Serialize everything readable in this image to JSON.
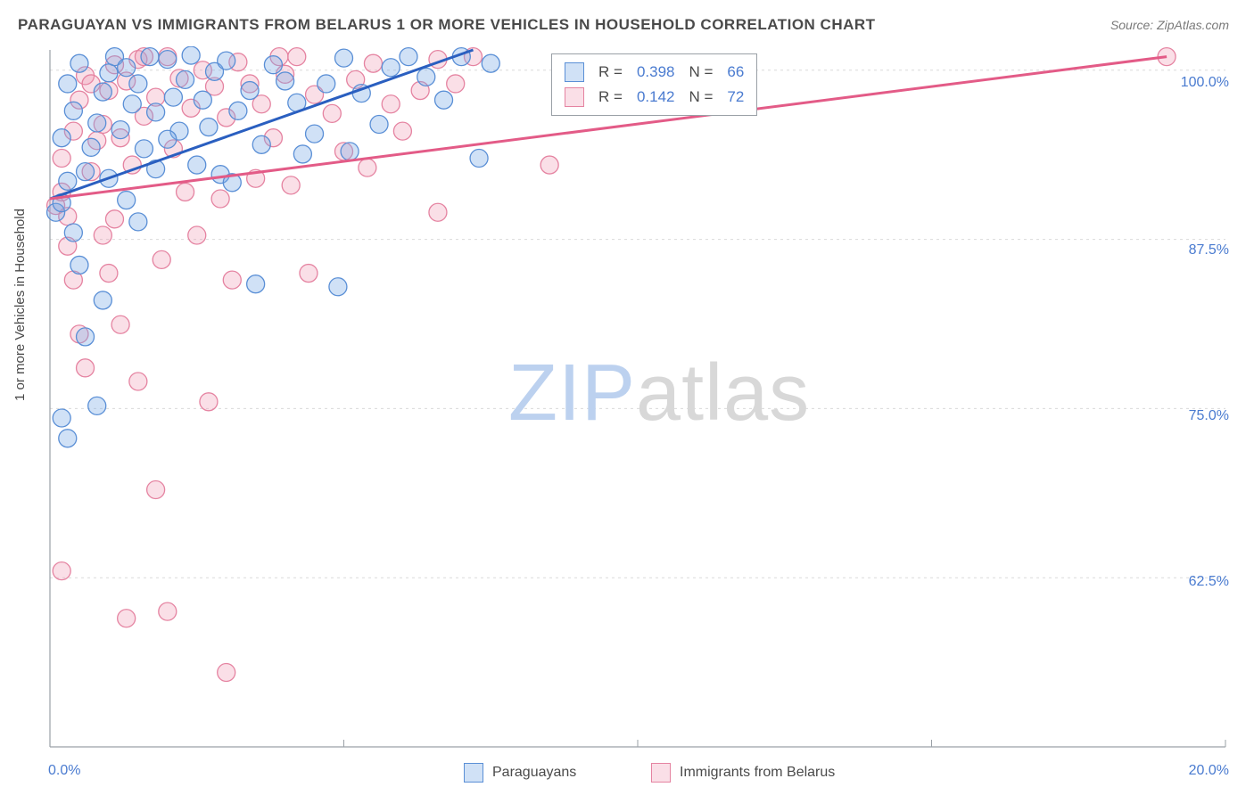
{
  "title": "PARAGUAYAN VS IMMIGRANTS FROM BELARUS 1 OR MORE VEHICLES IN HOUSEHOLD CORRELATION CHART",
  "source": "Source: ZipAtlas.com",
  "ylabel": "1 or more Vehicles in Household",
  "watermark": {
    "zip": "ZIP",
    "atlas": "atlas"
  },
  "chart": {
    "type": "scatter",
    "xlim": [
      0,
      20
    ],
    "ylim": [
      50,
      101.5
    ],
    "background_color": "#ffffff",
    "grid_color": "#d9d9d9",
    "grid_dash": "3,4",
    "axis_color": "#9aa0a6",
    "yticks": [
      62.5,
      75.0,
      87.5,
      100.0
    ],
    "ytick_labels": [
      "62.5%",
      "75.0%",
      "87.5%",
      "100.0%"
    ],
    "xticks": [
      0,
      10,
      20
    ],
    "xtick_labels": [
      "0.0%",
      "",
      "20.0%"
    ],
    "xtick_minor": [
      5,
      15
    ],
    "label_color": "#4a7bd0",
    "label_fontsize": 16
  },
  "series": [
    {
      "name": "Paraguayans",
      "color_fill": "rgba(120,170,230,0.35)",
      "color_stroke": "#5a8fd6",
      "line_color": "#2a5fc0",
      "marker_r": 10,
      "R": "0.398",
      "N": "66",
      "regression": {
        "x1": 0,
        "y1": 90.5,
        "x2": 7.2,
        "y2": 101.5
      },
      "points": [
        [
          0.1,
          89.5
        ],
        [
          0.2,
          90.2
        ],
        [
          0.3,
          91.8
        ],
        [
          0.2,
          95.0
        ],
        [
          0.4,
          97.0
        ],
        [
          0.3,
          99.0
        ],
        [
          0.5,
          100.5
        ],
        [
          0.6,
          92.5
        ],
        [
          0.7,
          94.3
        ],
        [
          0.8,
          96.1
        ],
        [
          0.9,
          98.4
        ],
        [
          1.0,
          99.8
        ],
        [
          0.4,
          88.0
        ],
        [
          0.5,
          85.6
        ],
        [
          0.9,
          83.0
        ],
        [
          0.6,
          80.3
        ],
        [
          0.2,
          74.3
        ],
        [
          0.3,
          72.8
        ],
        [
          1.1,
          101.0
        ],
        [
          1.3,
          100.2
        ],
        [
          1.5,
          99.0
        ],
        [
          1.7,
          101.0
        ],
        [
          2.0,
          100.8
        ],
        [
          1.4,
          97.5
        ],
        [
          1.2,
          95.6
        ],
        [
          1.6,
          94.2
        ],
        [
          1.8,
          96.9
        ],
        [
          2.1,
          98.0
        ],
        [
          2.4,
          101.1
        ],
        [
          2.2,
          95.5
        ],
        [
          1.0,
          92.0
        ],
        [
          1.3,
          90.4
        ],
        [
          1.5,
          88.8
        ],
        [
          1.8,
          92.7
        ],
        [
          2.0,
          94.9
        ],
        [
          0.8,
          75.2
        ],
        [
          2.3,
          99.3
        ],
        [
          2.6,
          97.8
        ],
        [
          2.8,
          99.9
        ],
        [
          3.0,
          100.7
        ],
        [
          2.5,
          93.0
        ],
        [
          2.7,
          95.8
        ],
        [
          2.9,
          92.3
        ],
        [
          3.2,
          97.0
        ],
        [
          3.4,
          98.5
        ],
        [
          3.6,
          94.5
        ],
        [
          3.1,
          91.7
        ],
        [
          3.8,
          100.4
        ],
        [
          4.0,
          99.2
        ],
        [
          4.2,
          97.6
        ],
        [
          4.5,
          95.3
        ],
        [
          4.7,
          99.0
        ],
        [
          4.3,
          93.8
        ],
        [
          3.5,
          84.2
        ],
        [
          5.0,
          100.9
        ],
        [
          5.3,
          98.3
        ],
        [
          5.6,
          96.0
        ],
        [
          5.1,
          94.0
        ],
        [
          5.8,
          100.2
        ],
        [
          7.3,
          93.5
        ],
        [
          6.1,
          101.0
        ],
        [
          6.4,
          99.5
        ],
        [
          7.0,
          101.0
        ],
        [
          6.7,
          97.8
        ],
        [
          7.5,
          100.5
        ],
        [
          4.9,
          84.0
        ]
      ]
    },
    {
      "name": "Immigrants from Belarus",
      "color_fill": "rgba(240,150,175,0.30)",
      "color_stroke": "#e583a1",
      "line_color": "#e35b87",
      "marker_r": 10,
      "R": "0.142",
      "N": "72",
      "regression": {
        "x1": 0,
        "y1": 90.5,
        "x2": 19.0,
        "y2": 101.0
      },
      "points": [
        [
          0.1,
          90.0
        ],
        [
          0.2,
          91.0
        ],
        [
          0.3,
          89.2
        ],
        [
          0.2,
          93.5
        ],
        [
          0.4,
          95.5
        ],
        [
          0.5,
          97.8
        ],
        [
          0.6,
          99.6
        ],
        [
          0.3,
          87.0
        ],
        [
          0.4,
          84.5
        ],
        [
          0.7,
          92.5
        ],
        [
          0.8,
          94.8
        ],
        [
          0.9,
          96.0
        ],
        [
          0.5,
          80.5
        ],
        [
          0.6,
          78.0
        ],
        [
          1.0,
          98.5
        ],
        [
          1.1,
          100.4
        ],
        [
          1.3,
          99.2
        ],
        [
          1.5,
          100.8
        ],
        [
          1.2,
          95.0
        ],
        [
          1.4,
          93.0
        ],
        [
          1.6,
          96.6
        ],
        [
          1.8,
          98.0
        ],
        [
          1.0,
          85.0
        ],
        [
          1.2,
          81.2
        ],
        [
          2.0,
          101.0
        ],
        [
          2.2,
          99.4
        ],
        [
          2.4,
          97.2
        ],
        [
          2.6,
          100.0
        ],
        [
          2.1,
          94.2
        ],
        [
          2.3,
          91.0
        ],
        [
          2.8,
          98.8
        ],
        [
          3.0,
          96.5
        ],
        [
          3.2,
          100.6
        ],
        [
          3.4,
          99.0
        ],
        [
          2.5,
          87.8
        ],
        [
          1.5,
          77.0
        ],
        [
          3.6,
          97.5
        ],
        [
          3.8,
          95.0
        ],
        [
          4.0,
          99.7
        ],
        [
          4.2,
          101.0
        ],
        [
          4.5,
          98.2
        ],
        [
          3.1,
          84.5
        ],
        [
          4.8,
          96.8
        ],
        [
          5.0,
          94.0
        ],
        [
          5.2,
          99.3
        ],
        [
          5.5,
          100.5
        ],
        [
          5.8,
          97.5
        ],
        [
          1.8,
          69.0
        ],
        [
          6.0,
          95.5
        ],
        [
          6.3,
          98.5
        ],
        [
          6.6,
          100.8
        ],
        [
          6.9,
          99.0
        ],
        [
          0.2,
          63.0
        ],
        [
          2.0,
          60.0
        ],
        [
          7.2,
          101.0
        ],
        [
          8.5,
          93.0
        ],
        [
          1.3,
          59.5
        ],
        [
          3.0,
          55.5
        ],
        [
          6.6,
          89.5
        ],
        [
          4.4,
          85.0
        ],
        [
          0.9,
          87.8
        ],
        [
          1.1,
          89.0
        ],
        [
          2.9,
          90.5
        ],
        [
          3.5,
          92.0
        ],
        [
          4.1,
          91.5
        ],
        [
          5.4,
          92.8
        ],
        [
          2.7,
          75.5
        ],
        [
          1.9,
          86.0
        ],
        [
          0.7,
          99.0
        ],
        [
          3.9,
          101.0
        ],
        [
          19.0,
          101.0
        ],
        [
          1.6,
          101.0
        ]
      ]
    }
  ],
  "legend": {
    "series1_label": "Paraguayans",
    "series2_label": "Immigrants from Belarus"
  },
  "stats_panel": {
    "rows": [
      {
        "swatch_fill": "rgba(120,170,230,0.35)",
        "swatch_stroke": "#5a8fd6",
        "R": "0.398",
        "N": "66"
      },
      {
        "swatch_fill": "rgba(240,150,175,0.30)",
        "swatch_stroke": "#e583a1",
        "R": "0.142",
        "N": "72"
      }
    ]
  }
}
